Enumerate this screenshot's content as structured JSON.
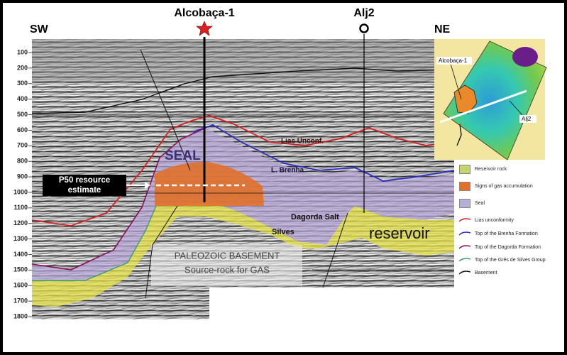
{
  "header": {
    "left": "SW",
    "right": "NE",
    "well_1": "Alcobaça-1",
    "well_2": "Alj2"
  },
  "depth_axis": {
    "ticks": [
      100,
      200,
      300,
      400,
      500,
      600,
      700,
      800,
      900,
      1000,
      1100,
      1200,
      1300,
      1400,
      1500,
      1600,
      1700,
      1800
    ]
  },
  "section_labels": {
    "seal": "SEAL",
    "p50": [
      "P50 resource",
      "estimate"
    ],
    "lias": "Lias Unconf.",
    "brenha": "L. Brenha",
    "dagorda": "Dagorda Salt",
    "silves": "Silves",
    "reservoir": "reservoir",
    "basement": [
      "PALEOZOIC BASEMENT",
      "Source-rock for GAS"
    ]
  },
  "inset_map": {
    "well_1": "Alcobaça-1",
    "well_2": "Alj2"
  },
  "legend": {
    "items": [
      "Reservoir rock",
      "Signs of gas accumulation",
      "Seal",
      "Lias unconformity",
      "Top of the Brenha Formation",
      "Top of the Dagorda Formation",
      "Top of the Grés de Silves Group",
      "Basement"
    ]
  }
}
